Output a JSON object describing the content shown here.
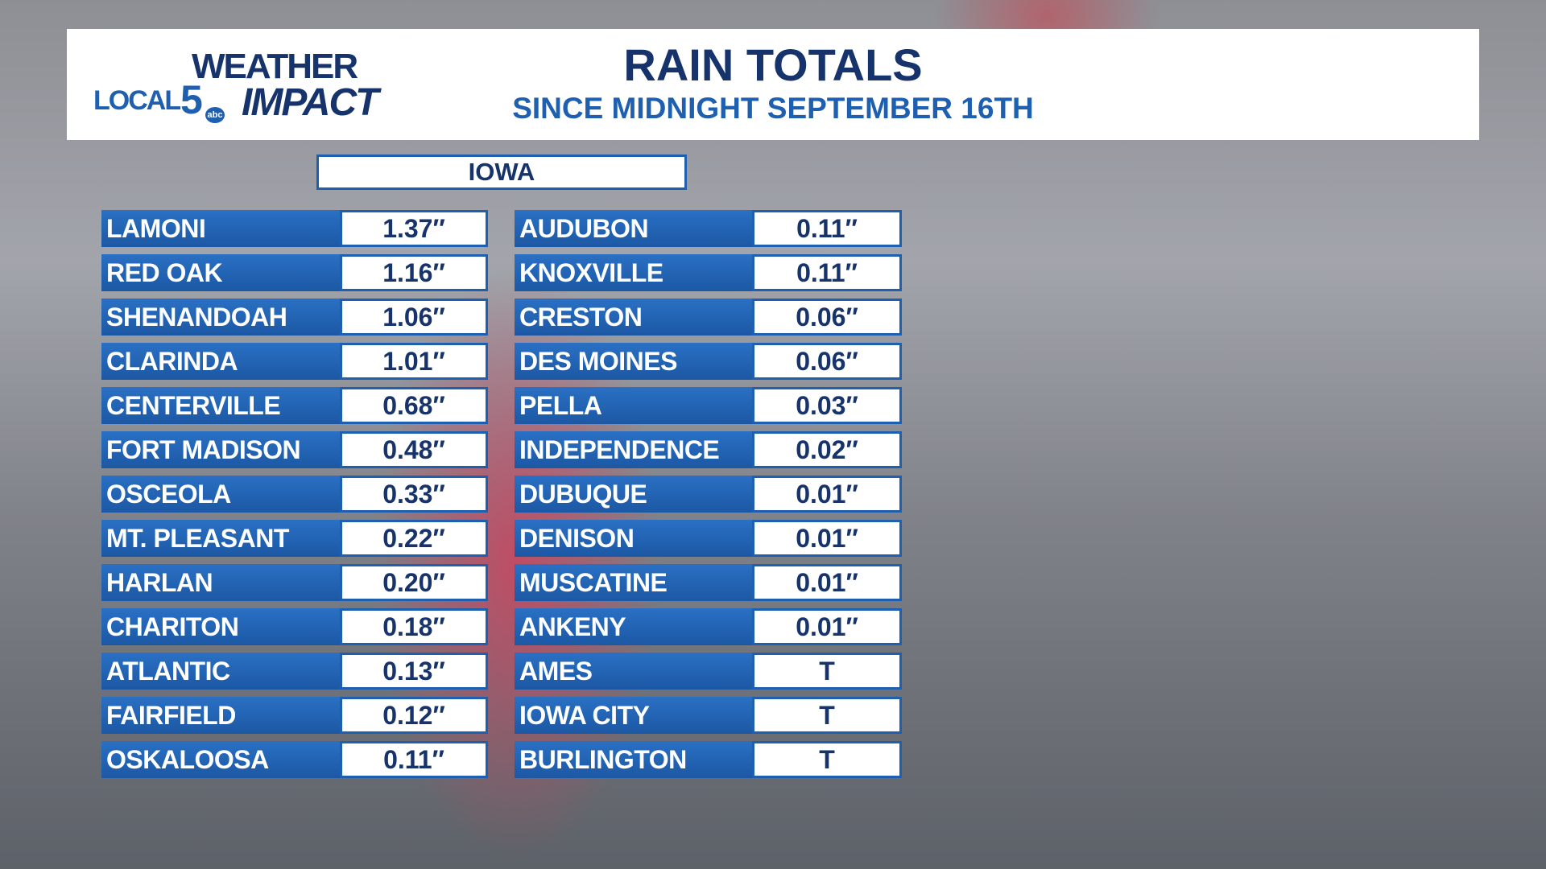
{
  "header": {
    "logo": {
      "top": "WEATHER",
      "station": "LOCAL",
      "channel": "5",
      "network": "abc",
      "bottom": "IMPACT"
    },
    "title": "RAIN TOTALS",
    "subtitle": "SINCE MIDNIGHT SEPTEMBER 16TH"
  },
  "table": {
    "title": "IOWA",
    "columns": [
      [
        [
          "LAMONI",
          "1.37″"
        ],
        [
          "RED OAK",
          "1.16″"
        ],
        [
          "SHENANDOAH",
          "1.06″"
        ],
        [
          "CLARINDA",
          "1.01″"
        ],
        [
          "CENTERVILLE",
          "0.68″"
        ],
        [
          "FORT MADISON",
          "0.48″"
        ],
        [
          "OSCEOLA",
          "0.33″"
        ],
        [
          "MT. PLEASANT",
          "0.22″"
        ],
        [
          "HARLAN",
          "0.20″"
        ],
        [
          "CHARITON",
          "0.18″"
        ],
        [
          "ATLANTIC",
          "0.13″"
        ],
        [
          "FAIRFIELD",
          "0.12″"
        ],
        [
          "OSKALOOSA",
          "0.11″"
        ]
      ],
      [
        [
          "AUDUBON",
          "0.11″"
        ],
        [
          "KNOXVILLE",
          "0.11″"
        ],
        [
          "CRESTON",
          "0.06″"
        ],
        [
          "DES MOINES",
          "0.06″"
        ],
        [
          "PELLA",
          "0.03″"
        ],
        [
          "INDEPENDENCE",
          "0.02″"
        ],
        [
          "DUBUQUE",
          "0.01″"
        ],
        [
          "DENISON",
          "0.01″"
        ],
        [
          "MUSCATINE",
          "0.01″"
        ],
        [
          "ANKENY",
          "0.01″"
        ],
        [
          "AMES",
          "T"
        ],
        [
          "IOWA CITY",
          "T"
        ],
        [
          "BURLINGTON",
          "T"
        ]
      ]
    ]
  }
}
